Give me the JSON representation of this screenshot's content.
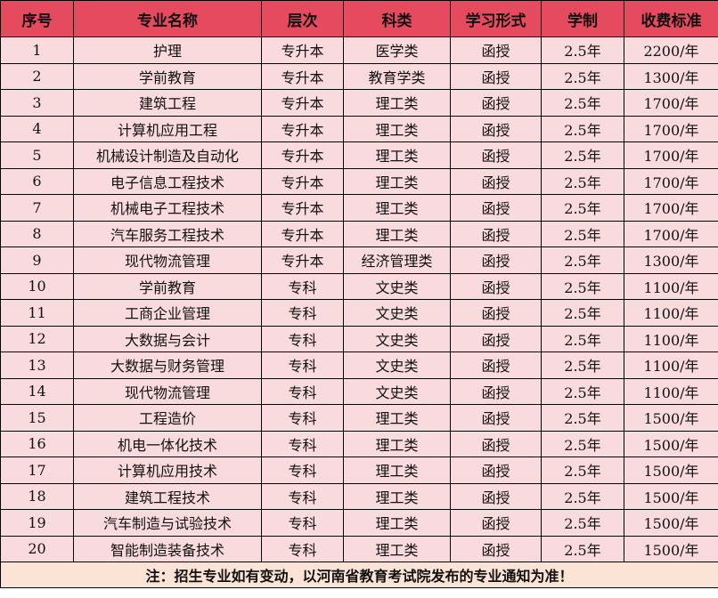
{
  "headers": [
    "序号",
    "专业名称",
    "层次",
    "科类",
    "学习形式",
    "学制",
    "收费标准"
  ],
  "rows": [
    [
      "1",
      "护理",
      "专升本",
      "医学类",
      "函授",
      "2.5年",
      "2200/年"
    ],
    [
      "2",
      "学前教育",
      "专升本",
      "教育学类",
      "函授",
      "2.5年",
      "1300/年"
    ],
    [
      "3",
      "建筑工程",
      "专升本",
      "理工类",
      "函授",
      "2.5年",
      "1700/年"
    ],
    [
      "4",
      "计算机应用工程",
      "专升本",
      "理工类",
      "函授",
      "2.5年",
      "1700/年"
    ],
    [
      "5",
      "机械设计制造及自动化",
      "专升本",
      "理工类",
      "函授",
      "2.5年",
      "1700/年"
    ],
    [
      "6",
      "电子信息工程技术",
      "专升本",
      "理工类",
      "函授",
      "2.5年",
      "1700/年"
    ],
    [
      "7",
      "机械电子工程技术",
      "专升本",
      "理工类",
      "函授",
      "2.5年",
      "1700/年"
    ],
    [
      "8",
      "汽车服务工程技术",
      "专升本",
      "理工类",
      "函授",
      "2.5年",
      "1700/年"
    ],
    [
      "9",
      "现代物流管理",
      "专升本",
      "经济管理类",
      "函授",
      "2.5年",
      "1300/年"
    ],
    [
      "10",
      "学前教育",
      "专科",
      "文史类",
      "函授",
      "2.5年",
      "1100/年"
    ],
    [
      "11",
      "工商企业管理",
      "专科",
      "文史类",
      "函授",
      "2.5年",
      "1100/年"
    ],
    [
      "12",
      "大数据与会计",
      "专科",
      "文史类",
      "函授",
      "2.5年",
      "1100/年"
    ],
    [
      "13",
      "大数据与财务管理",
      "专科",
      "文史类",
      "函授",
      "2.5年",
      "1100/年"
    ],
    [
      "14",
      "现代物流管理",
      "专科",
      "文史类",
      "函授",
      "2.5年",
      "1100/年"
    ],
    [
      "15",
      "工程造价",
      "专科",
      "理工类",
      "函授",
      "2.5年",
      "1500/年"
    ],
    [
      "16",
      "机电一体化技术",
      "专科",
      "理工类",
      "函授",
      "2.5年",
      "1500/年"
    ],
    [
      "17",
      "计算机应用技术",
      "专科",
      "理工类",
      "函授",
      "2.5年",
      "1500/年"
    ],
    [
      "18",
      "建筑工程技术",
      "专科",
      "理工类",
      "函授",
      "2.5年",
      "1500/年"
    ],
    [
      "19",
      "汽车制造与试验技术",
      "专科",
      "理工类",
      "函授",
      "2.5年",
      "1500/年"
    ],
    [
      "20",
      "智能制造装备技术",
      "专科",
      "理工类",
      "函授",
      "2.5年",
      "1500/年"
    ]
  ],
  "note": "注：招生专业如有变动，以河南省教育考试院发布的专业通知为准！",
  "colors": {
    "header": "#E64A5E",
    "row": "#F9DADD",
    "note": "#FBE3D5"
  }
}
